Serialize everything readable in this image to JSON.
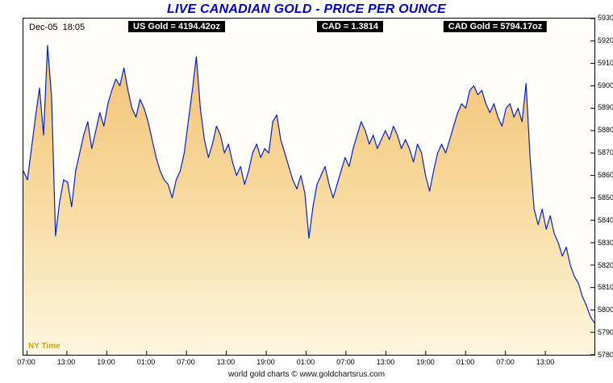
{
  "title": "LIVE CANADIAN GOLD - PRICE PER OUNCE",
  "header": {
    "timestamp": "Dec-05  18:05",
    "us_gold": "US Gold = 4194.42oz",
    "cad_rate": "CAD = 1.3814",
    "cad_gold": "CAD Gold = 5794.17oz"
  },
  "ny_time_label": "NY Time",
  "footer": "world gold charts © www.goldchartsrus.com",
  "colors": {
    "title": "#0000D6",
    "line": "#0022CC",
    "fill_top": "#F3C172",
    "fill_mid": "#F8DDA4",
    "fill_bottom": "#FDF6E0",
    "quote_bg": "#000000",
    "quote_text": "#FFFFFF",
    "ny_time": "#C9A513"
  },
  "chart_data": {
    "type": "area",
    "title": "LIVE CANADIAN GOLD - PRICE PER OUNCE",
    "xlabel": "",
    "ylabel": "",
    "ylim": [
      5780,
      5930
    ],
    "y_ticks": [
      5930,
      5920,
      5910,
      5900,
      5890,
      5880,
      5870,
      5860,
      5850,
      5840,
      5830,
      5820,
      5810,
      5800,
      5790,
      5780
    ],
    "x_ticks": [
      "07:00",
      "13:00",
      "19:00",
      "01:00",
      "07:00",
      "13:00",
      "19:00",
      "01:00",
      "07:00",
      "13:00",
      "19:00",
      "01:00",
      "07:00",
      "13:00"
    ],
    "grid": false,
    "legend": false,
    "series": [
      {
        "name": "CAD Gold",
        "values": [
          5862,
          5858,
          5872,
          5886,
          5899,
          5878,
          5918,
          5895,
          5833,
          5848,
          5858,
          5857,
          5846,
          5862,
          5870,
          5878,
          5884,
          5872,
          5880,
          5888,
          5882,
          5892,
          5898,
          5903,
          5900,
          5908,
          5898,
          5890,
          5886,
          5894,
          5890,
          5884,
          5876,
          5868,
          5862,
          5858,
          5856,
          5850,
          5858,
          5862,
          5870,
          5884,
          5898,
          5913,
          5890,
          5876,
          5868,
          5874,
          5882,
          5878,
          5870,
          5874,
          5866,
          5860,
          5864,
          5856,
          5862,
          5870,
          5874,
          5868,
          5872,
          5870,
          5884,
          5887,
          5876,
          5870,
          5864,
          5858,
          5854,
          5860,
          5852,
          5832,
          5846,
          5856,
          5860,
          5864,
          5856,
          5850,
          5856,
          5862,
          5868,
          5864,
          5872,
          5878,
          5884,
          5880,
          5874,
          5878,
          5872,
          5876,
          5880,
          5876,
          5882,
          5878,
          5872,
          5876,
          5872,
          5866,
          5874,
          5870,
          5860,
          5853,
          5862,
          5870,
          5874,
          5870,
          5876,
          5882,
          5888,
          5892,
          5890,
          5898,
          5900,
          5896,
          5898,
          5892,
          5888,
          5892,
          5886,
          5882,
          5890,
          5892,
          5886,
          5890,
          5884,
          5901,
          5868,
          5845,
          5838,
          5845,
          5836,
          5842,
          5834,
          5830,
          5824,
          5828,
          5820,
          5815,
          5812,
          5806,
          5802,
          5797,
          5794.17
        ]
      }
    ]
  }
}
